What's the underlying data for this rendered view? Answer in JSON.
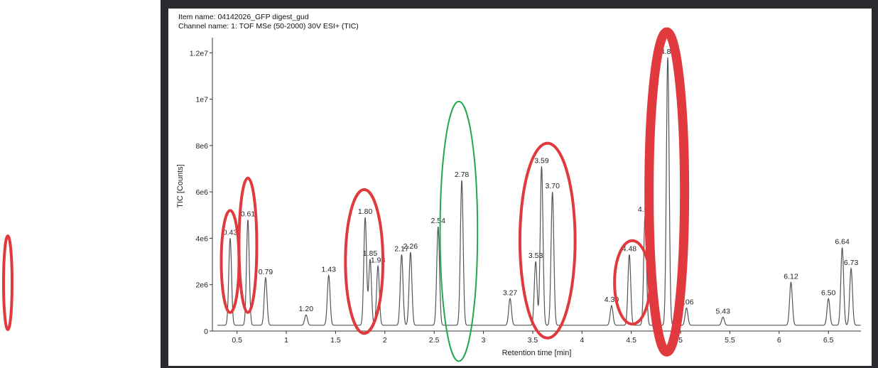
{
  "header": {
    "item_name": "Item name: 04142026_GFP digest_gud",
    "channel_name": "Channel name: 1: TOF MSe (50-2000) 30V ESI+ (TIC)"
  },
  "colors": {
    "trace": "#555555",
    "red_highlight": "#e03a3e",
    "green_highlight": "#22a84a",
    "frame": "#2a2a2e"
  },
  "chart_data": {
    "type": "line",
    "xlabel": "Retention time [min]",
    "ylabel": "TIC [Counts]",
    "xlim": [
      0.25,
      6.83
    ],
    "ylim": [
      0,
      12500000
    ],
    "x_ticks": [
      0.5,
      1,
      1.5,
      2,
      2.5,
      3,
      3.5,
      4,
      4.5,
      5,
      5.5,
      6,
      6.5
    ],
    "x_tick_labels": [
      "0.5",
      "1",
      "1.5",
      "2",
      "2.5",
      "3",
      "3.5",
      "4",
      "4.5",
      "5",
      "5.5",
      "6",
      "6.5"
    ],
    "y_ticks": [
      0,
      2000000,
      4000000,
      6000000,
      8000000,
      10000000,
      12000000
    ],
    "y_tick_labels": [
      "0",
      "2e6",
      "4e6",
      "6e6",
      "8e6",
      "1e7",
      "1.2e7"
    ],
    "baseline": 250000,
    "peaks": [
      {
        "label": "0.43",
        "rt": 0.43,
        "intensity": 4000000
      },
      {
        "label": "0.61",
        "rt": 0.61,
        "intensity": 4800000
      },
      {
        "label": "0.79",
        "rt": 0.79,
        "intensity": 2300000
      },
      {
        "label": "1.20",
        "rt": 1.2,
        "intensity": 700000
      },
      {
        "label": "1.43",
        "rt": 1.43,
        "intensity": 2400000
      },
      {
        "label": "1.80",
        "rt": 1.8,
        "intensity": 4900000
      },
      {
        "label": "1.85",
        "rt": 1.85,
        "intensity": 3100000
      },
      {
        "label": "1.93",
        "rt": 1.93,
        "intensity": 2800000
      },
      {
        "label": "2.17",
        "rt": 2.17,
        "intensity": 3300000
      },
      {
        "label": "2.26",
        "rt": 2.26,
        "intensity": 3400000
      },
      {
        "label": "2.54",
        "rt": 2.54,
        "intensity": 4500000
      },
      {
        "label": "2.78",
        "rt": 2.78,
        "intensity": 6500000
      },
      {
        "label": "3.27",
        "rt": 3.27,
        "intensity": 1400000
      },
      {
        "label": "3.53",
        "rt": 3.53,
        "intensity": 3000000
      },
      {
        "label": "3.59",
        "rt": 3.59,
        "intensity": 7100000
      },
      {
        "label": "3.70",
        "rt": 3.7,
        "intensity": 6000000
      },
      {
        "label": "4.30",
        "rt": 4.3,
        "intensity": 1100000
      },
      {
        "label": "4.48",
        "rt": 4.48,
        "intensity": 3300000
      },
      {
        "label": "4.64",
        "rt": 4.64,
        "intensity": 5000000
      },
      {
        "label": "4.87",
        "rt": 4.87,
        "intensity": 11800000
      },
      {
        "label": "5.06",
        "rt": 5.06,
        "intensity": 1000000
      },
      {
        "label": "5.43",
        "rt": 5.43,
        "intensity": 600000
      },
      {
        "label": "6.12",
        "rt": 6.12,
        "intensity": 2100000
      },
      {
        "label": "6.50",
        "rt": 6.5,
        "intensity": 1400000
      },
      {
        "label": "6.64",
        "rt": 6.64,
        "intensity": 3600000
      },
      {
        "label": "6.73",
        "rt": 6.73,
        "intensity": 2700000
      }
    ],
    "highlights": [
      {
        "color": "red",
        "center_rt": 0.43,
        "center_y": 3000000,
        "half_width_rt": 0.09,
        "half_height": 2200000
      },
      {
        "color": "red",
        "center_rt": 0.61,
        "center_y": 3700000,
        "half_width_rt": 0.09,
        "half_height": 2900000
      },
      {
        "color": "red",
        "center_rt": 1.79,
        "center_y": 3000000,
        "half_width_rt": 0.19,
        "half_height": 3100000
      },
      {
        "color": "green",
        "center_rt": 2.75,
        "center_y": 4300000,
        "half_width_rt": 0.19,
        "half_height": 5600000
      },
      {
        "color": "red",
        "center_rt": 3.65,
        "center_y": 3900000,
        "half_width_rt": 0.28,
        "half_height": 4200000
      },
      {
        "color": "red",
        "center_rt": 4.51,
        "center_y": 2100000,
        "half_width_rt": 0.18,
        "half_height": 1800000
      },
      {
        "color": "red",
        "center_rt": 4.86,
        "center_y": 6000000,
        "half_width_rt": 0.18,
        "half_height": 6900000
      }
    ]
  }
}
